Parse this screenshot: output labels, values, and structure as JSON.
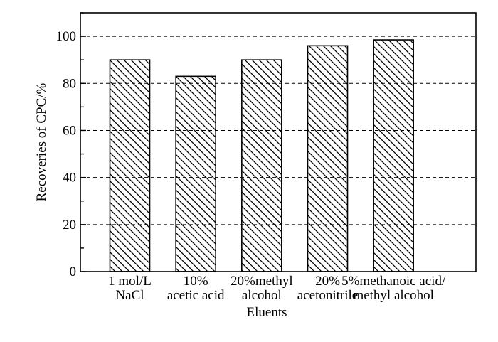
{
  "chart_data": {
    "type": "bar",
    "title": "",
    "xlabel": "Eluents",
    "ylabel": "Recoveries of CPC/%",
    "ylim": [
      0,
      110
    ],
    "yticks": [
      "0",
      "20",
      "40",
      "60",
      "80",
      "100"
    ],
    "grid": "horizontal dashed lines at major y ticks",
    "bar_fill": "diagonal hatch",
    "categories": [
      [
        "1 mol/L",
        "NaCl"
      ],
      [
        "10%",
        "acetic acid"
      ],
      [
        "20%methyl",
        "alcohol"
      ],
      [
        "20%",
        "acetonitrile"
      ],
      [
        "5%methanoic acid/",
        "methyl alcohol"
      ]
    ],
    "values": [
      90,
      83,
      90,
      96,
      98.5
    ]
  }
}
